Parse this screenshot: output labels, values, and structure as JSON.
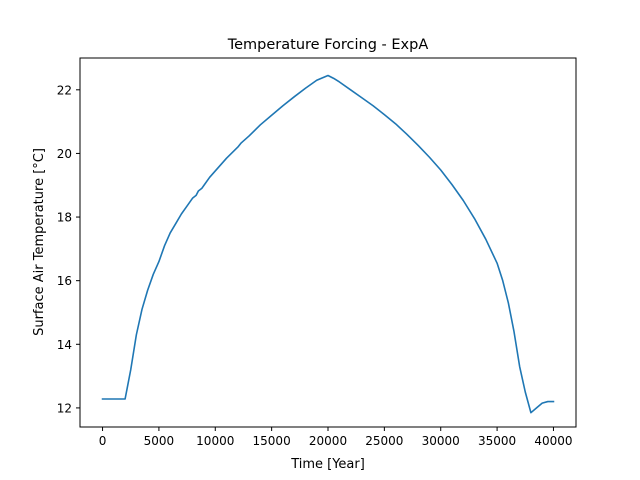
{
  "chart_data": {
    "type": "line",
    "title": "Temperature Forcing - ExpA",
    "xlabel": "Time [Year]",
    "ylabel": "Surface Air Temperature [°C]",
    "xlim": [
      -2000,
      42000
    ],
    "ylim": [
      11.4,
      23.0
    ],
    "x_ticks": [
      0,
      5000,
      10000,
      15000,
      20000,
      25000,
      30000,
      35000,
      40000
    ],
    "y_ticks": [
      12,
      14,
      16,
      18,
      20,
      22
    ],
    "grid": false,
    "legend": "none",
    "series": [
      {
        "color": "#1f77b4",
        "x": [
          0,
          1000,
          2000,
          2500,
          3000,
          3500,
          4000,
          4500,
          5000,
          5500,
          6000,
          6500,
          7000,
          7500,
          8000,
          8300,
          8500,
          8800,
          9000,
          9500,
          10000,
          11000,
          12000,
          12300,
          13000,
          14000,
          15000,
          16000,
          17000,
          18000,
          19000,
          20000,
          20500,
          21000,
          22000,
          23000,
          24000,
          25000,
          26000,
          27000,
          28000,
          29000,
          30000,
          31000,
          32000,
          33000,
          34000,
          35000,
          35500,
          36000,
          36500,
          37000,
          37500,
          38000,
          38500,
          39000,
          39500,
          40000
        ],
        "y": [
          12.28,
          12.28,
          12.28,
          13.2,
          14.3,
          15.1,
          15.7,
          16.2,
          16.6,
          17.1,
          17.5,
          17.8,
          18.1,
          18.35,
          18.6,
          18.68,
          18.82,
          18.9,
          19.0,
          19.25,
          19.45,
          19.85,
          20.2,
          20.33,
          20.55,
          20.9,
          21.2,
          21.5,
          21.78,
          22.05,
          22.3,
          22.45,
          22.36,
          22.25,
          22.0,
          21.75,
          21.5,
          21.22,
          20.93,
          20.6,
          20.25,
          19.88,
          19.48,
          19.02,
          18.52,
          17.95,
          17.3,
          16.55,
          16.0,
          15.3,
          14.4,
          13.3,
          12.5,
          11.85,
          12.0,
          12.15,
          12.2,
          12.2
        ]
      }
    ]
  }
}
